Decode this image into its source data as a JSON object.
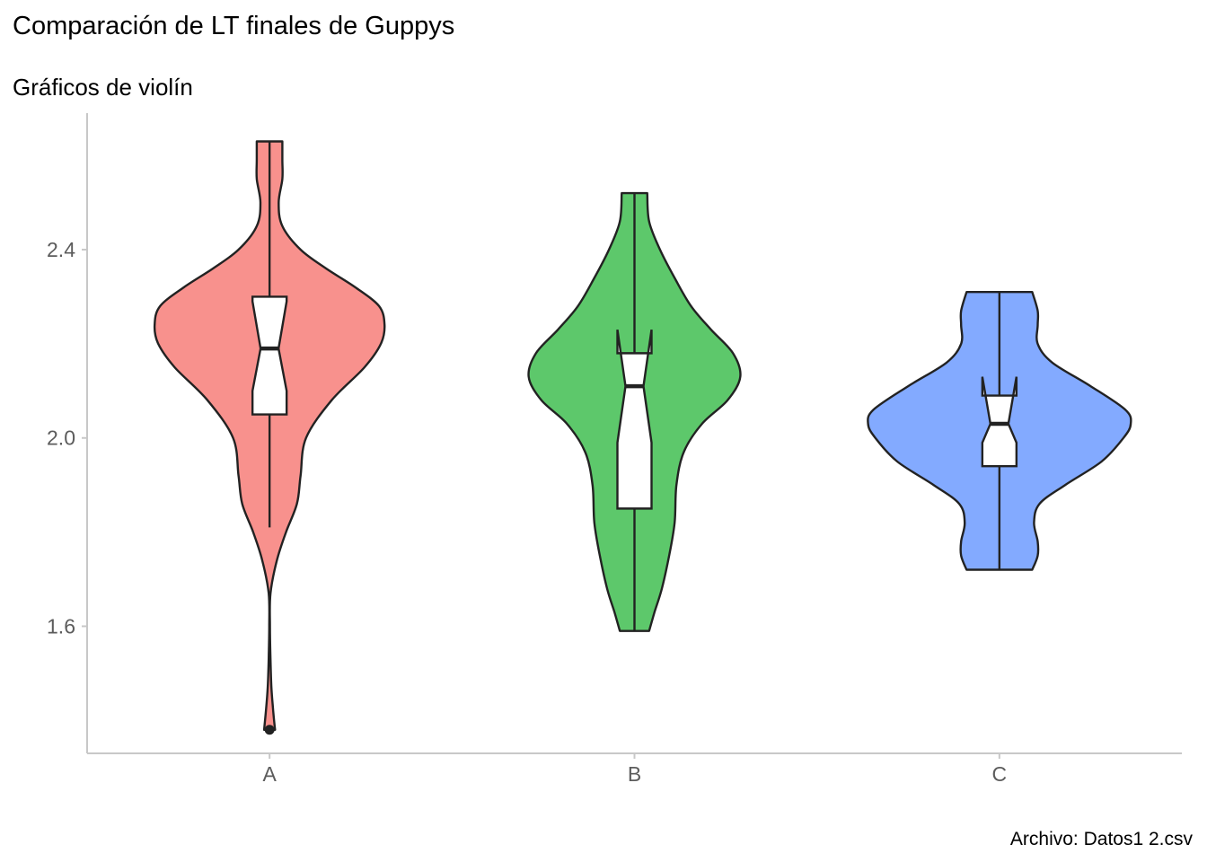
{
  "chart_data": {
    "type": "violin",
    "title": "Comparación de LT finales de Guppys",
    "subtitle": "Gráficos de violín",
    "caption": "Archivo: Datos1 2.csv",
    "xlabel": "",
    "ylabel": "",
    "categories": [
      "A",
      "B",
      "C"
    ],
    "ylim": [
      1.33,
      2.69
    ],
    "y_ticks": [
      1.6,
      2.0,
      2.4
    ],
    "y_tick_labels": [
      "1.6",
      "2.0",
      "2.4"
    ],
    "grid": false,
    "legend": "none",
    "colors": {
      "A": "#F8918D",
      "B": "#5DC86B",
      "C": "#83AAFF"
    },
    "groups": [
      {
        "name": "A",
        "min": 1.38,
        "max": 2.63,
        "q1": 2.05,
        "median": 2.19,
        "q3": 2.3,
        "notch_low": 2.1,
        "notch_high": 2.29,
        "whisker_low": 1.81,
        "whisker_high": 2.63,
        "outliers": [
          1.38
        ],
        "density_half_width": [
          [
            1.38,
            0.03
          ],
          [
            1.42,
            0.02
          ],
          [
            1.47,
            0.01
          ],
          [
            1.53,
            0.005
          ],
          [
            1.6,
            0.002
          ],
          [
            1.67,
            0.005
          ],
          [
            1.74,
            0.04
          ],
          [
            1.8,
            0.09
          ],
          [
            1.86,
            0.15
          ],
          [
            1.92,
            0.17
          ],
          [
            2.0,
            0.2
          ],
          [
            2.08,
            0.34
          ],
          [
            2.15,
            0.52
          ],
          [
            2.2,
            0.61
          ],
          [
            2.24,
            0.63
          ],
          [
            2.28,
            0.6
          ],
          [
            2.32,
            0.47
          ],
          [
            2.36,
            0.31
          ],
          [
            2.4,
            0.17
          ],
          [
            2.45,
            0.07
          ],
          [
            2.5,
            0.05
          ],
          [
            2.55,
            0.07
          ],
          [
            2.59,
            0.07
          ],
          [
            2.63,
            0.07
          ]
        ]
      },
      {
        "name": "B",
        "min": 1.59,
        "max": 2.52,
        "q1": 1.85,
        "median": 2.11,
        "q3": 2.18,
        "notch_low": 1.99,
        "notch_high": 2.23,
        "whisker_low": 1.59,
        "whisker_high": 2.52,
        "outliers": [],
        "density_half_width": [
          [
            1.59,
            0.08
          ],
          [
            1.63,
            0.11
          ],
          [
            1.68,
            0.15
          ],
          [
            1.75,
            0.19
          ],
          [
            1.82,
            0.22
          ],
          [
            1.9,
            0.23
          ],
          [
            1.97,
            0.27
          ],
          [
            2.03,
            0.37
          ],
          [
            2.08,
            0.51
          ],
          [
            2.13,
            0.58
          ],
          [
            2.18,
            0.54
          ],
          [
            2.23,
            0.42
          ],
          [
            2.28,
            0.31
          ],
          [
            2.34,
            0.22
          ],
          [
            2.4,
            0.14
          ],
          [
            2.46,
            0.08
          ],
          [
            2.52,
            0.07
          ]
        ]
      },
      {
        "name": "C",
        "min": 1.72,
        "max": 2.31,
        "q1": 1.94,
        "median": 2.03,
        "q3": 2.09,
        "notch_low": 1.99,
        "notch_high": 2.13,
        "whisker_low": 1.72,
        "whisker_high": 2.31,
        "outliers": [],
        "density_half_width": [
          [
            1.72,
            0.18
          ],
          [
            1.75,
            0.21
          ],
          [
            1.78,
            0.21
          ],
          [
            1.82,
            0.19
          ],
          [
            1.86,
            0.22
          ],
          [
            1.9,
            0.36
          ],
          [
            1.95,
            0.56
          ],
          [
            2.0,
            0.68
          ],
          [
            2.03,
            0.72
          ],
          [
            2.06,
            0.69
          ],
          [
            2.11,
            0.5
          ],
          [
            2.16,
            0.29
          ],
          [
            2.2,
            0.21
          ],
          [
            2.24,
            0.21
          ],
          [
            2.27,
            0.21
          ],
          [
            2.31,
            0.18
          ]
        ]
      }
    ]
  }
}
